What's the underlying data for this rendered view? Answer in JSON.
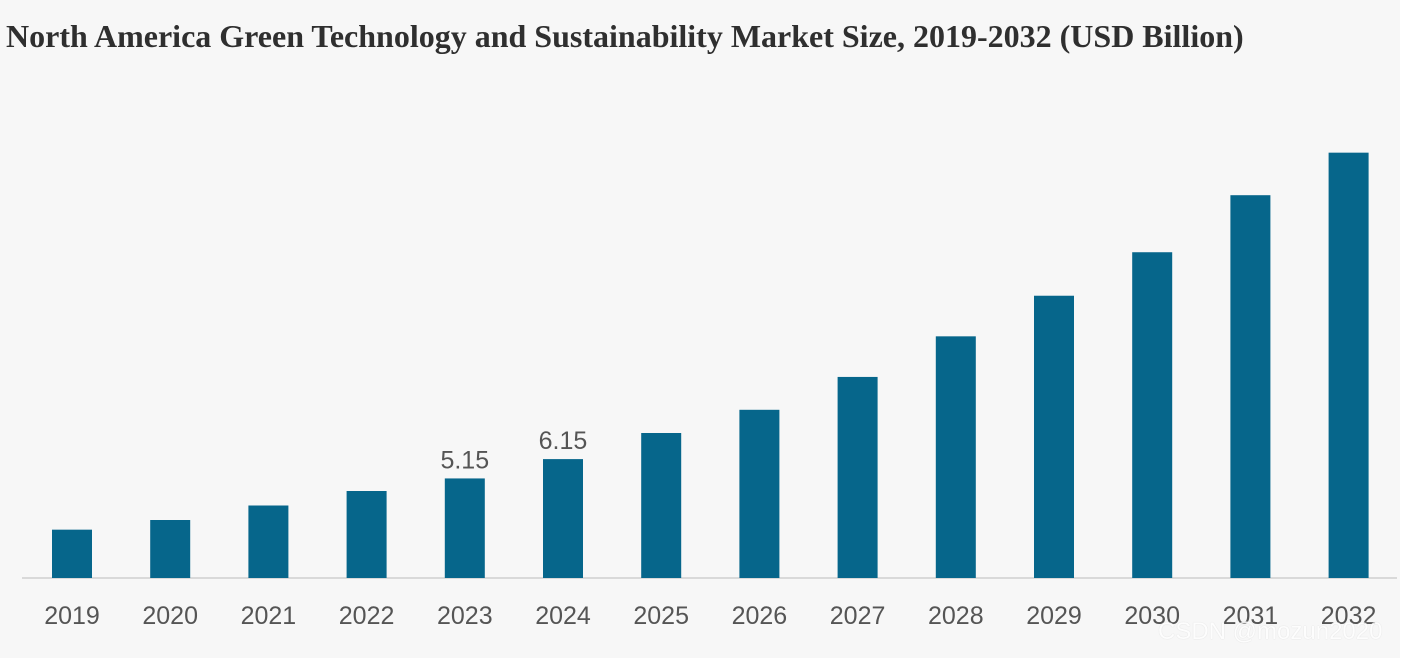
{
  "chart_data": {
    "type": "bar",
    "title": "North America Green Technology and Sustainability Market Size, 2019-2032 (USD Billion)",
    "xlabel": "",
    "ylabel": "",
    "categories": [
      "2019",
      "2020",
      "2021",
      "2022",
      "2023",
      "2024",
      "2025",
      "2026",
      "2027",
      "2028",
      "2029",
      "2030",
      "2031",
      "2032"
    ],
    "values": [
      2.5,
      3.0,
      3.75,
      4.5,
      5.15,
      6.15,
      7.5,
      8.7,
      10.4,
      12.5,
      14.6,
      16.85,
      19.8,
      22.0
    ],
    "data_labels": [
      "",
      "",
      "",
      "",
      "5.15",
      "6.15",
      "",
      "",
      "",
      "",
      "",
      "",
      "",
      ""
    ],
    "ylim": [
      0,
      22.5
    ],
    "bar_color": "#06668b",
    "grid": false,
    "legend": "none"
  },
  "watermark": "CSDN @mozun2020"
}
